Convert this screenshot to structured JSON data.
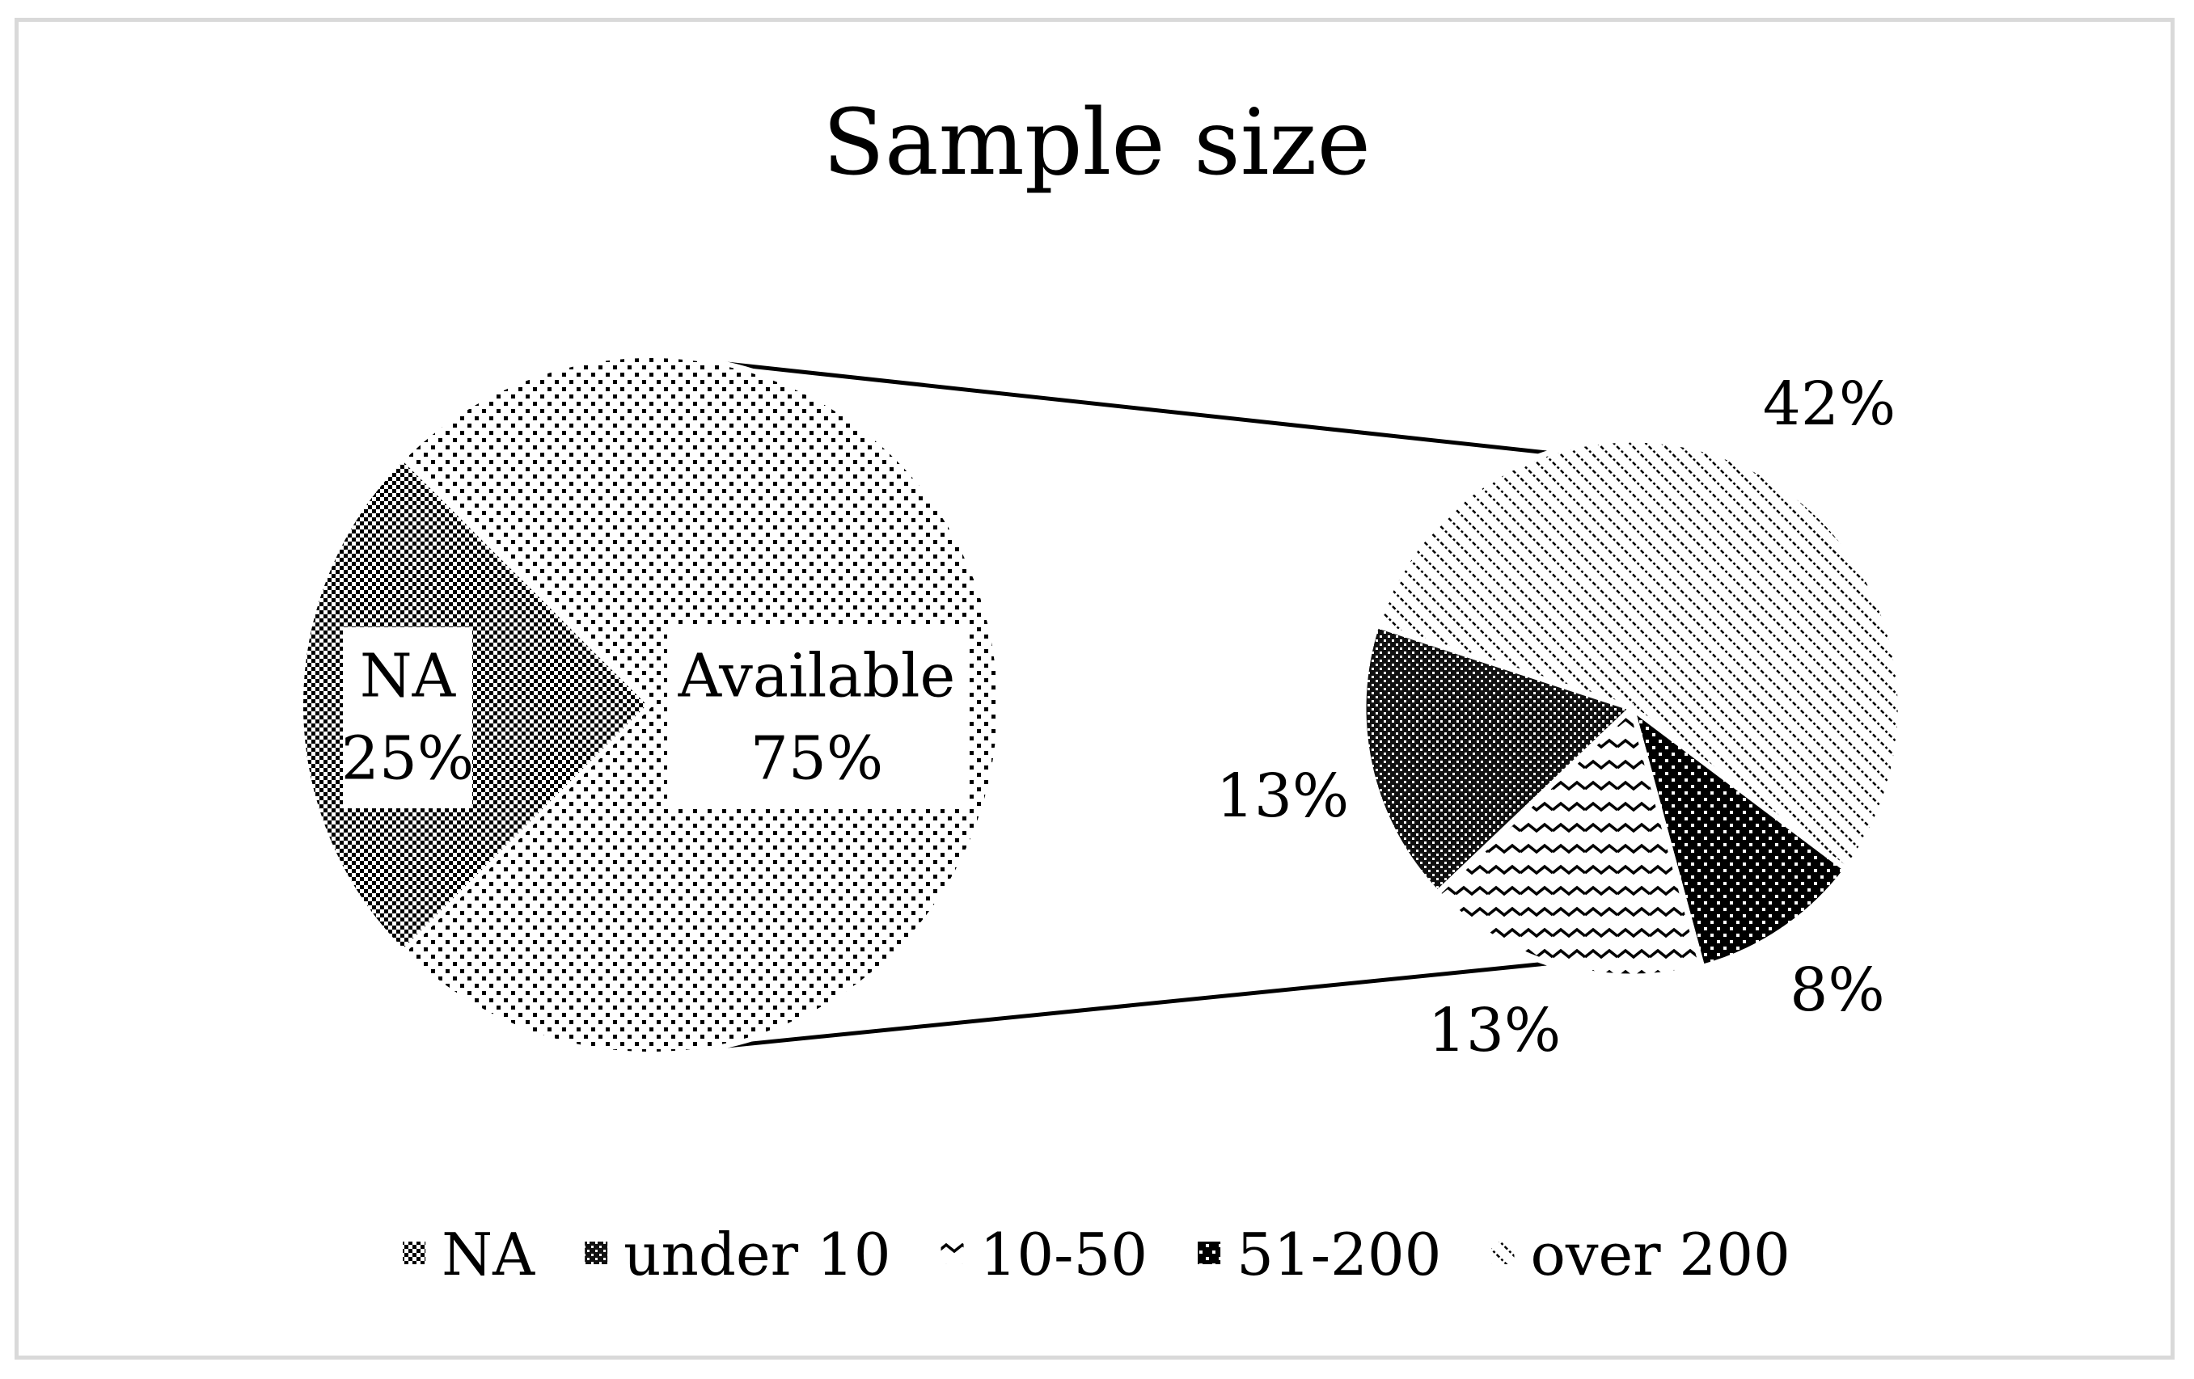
{
  "chart_data": {
    "type": "pie",
    "subtype": "pie-of-pie",
    "title": "Sample size",
    "main_pie": {
      "slices": [
        {
          "label": "NA",
          "value": 25,
          "display": "25%",
          "pattern": "checker"
        },
        {
          "label": "Available",
          "value": 75,
          "display": "75%",
          "pattern": "dots"
        }
      ]
    },
    "secondary_pie": {
      "slices": [
        {
          "label": "over 200",
          "value": 42,
          "display": "42%",
          "pattern": "diagonal"
        },
        {
          "label": "51-200",
          "value": 8,
          "display": "8%",
          "pattern": "dark-dots"
        },
        {
          "label": "10-50",
          "value": 13,
          "display": "13%",
          "pattern": "wave"
        },
        {
          "label": "under 10",
          "value": 13,
          "display": "13%",
          "pattern": "dark-checker"
        }
      ]
    },
    "legend": {
      "placement": "bottom",
      "items": [
        {
          "label": "NA",
          "pattern": "checker"
        },
        {
          "label": "under 10",
          "pattern": "dark-checker"
        },
        {
          "label": "10-50",
          "pattern": "wave"
        },
        {
          "label": "51-200",
          "pattern": "dark-dots"
        },
        {
          "label": "over 200",
          "pattern": "diagonal"
        }
      ]
    }
  }
}
